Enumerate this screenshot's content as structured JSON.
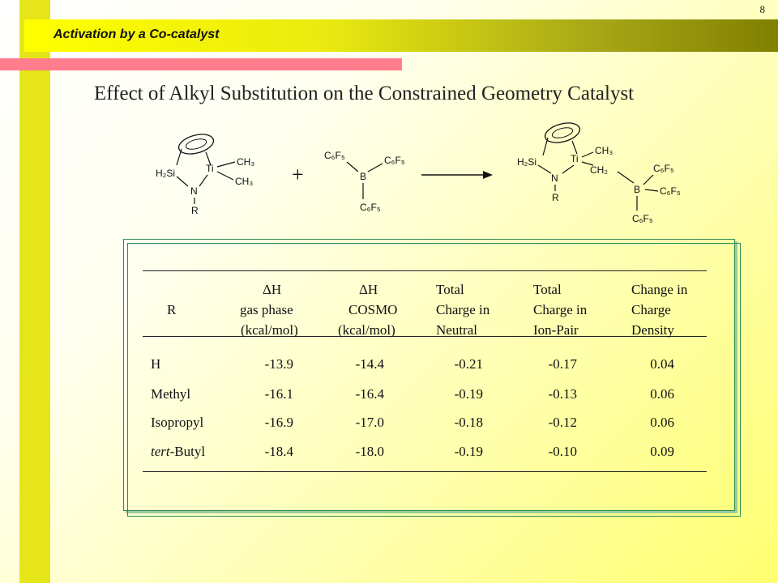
{
  "header": {
    "section_title": "Activation by a Co-catalyst",
    "page_number": "8"
  },
  "title": "Effect of Alkyl Substitution on the Constrained Geometry Catalyst",
  "scheme": {
    "reactant1": {
      "si": "H₂Si",
      "ti": "Ti",
      "ch3_top": "CH₃",
      "ch3_bottom": "CH₃",
      "n": "N",
      "r": "R"
    },
    "plus": "+",
    "reactant2": {
      "c6f5_left": "C₆F₅",
      "c6f5_right": "C₆F₅",
      "b": "B",
      "c6f5_bottom": "C₆F₅"
    },
    "product": {
      "si": "H₂Si",
      "ti": "Ti",
      "ch3": "CH₃",
      "ch2": "CH₂",
      "n": "N",
      "r": "R",
      "b": "B",
      "c6f5_top": "C₆F₅",
      "c6f5_right": "C₆F₅",
      "c6f5_bottom": "C₆F₅"
    }
  },
  "table": {
    "headers": [
      {
        "lines": [
          "",
          "R",
          ""
        ]
      },
      {
        "lines": [
          "ΔH",
          "gas phase",
          "(kcal/mol)"
        ]
      },
      {
        "lines": [
          "ΔH",
          "COSMO",
          "(kcal/mol)"
        ]
      },
      {
        "lines": [
          "Total",
          "Charge in",
          "Neutral"
        ]
      },
      {
        "lines": [
          "Total",
          "Charge in",
          "Ion-Pair"
        ]
      },
      {
        "lines": [
          "Change in",
          "Charge",
          "Density"
        ]
      }
    ],
    "rows": [
      {
        "r_prefix": "",
        "r": "H",
        "dh_gas": "-13.9",
        "dh_cosmo": "-14.4",
        "charge_neutral": "-0.21",
        "charge_ionpair": "-0.17",
        "change_density": "0.04"
      },
      {
        "r_prefix": "",
        "r": "Methyl",
        "dh_gas": "-16.1",
        "dh_cosmo": "-16.4",
        "charge_neutral": "-0.19",
        "charge_ionpair": "-0.13",
        "change_density": "0.06"
      },
      {
        "r_prefix": "",
        "r": "Isopropyl",
        "dh_gas": "-16.9",
        "dh_cosmo": "-17.0",
        "charge_neutral": "-0.18",
        "charge_ionpair": "-0.12",
        "change_density": "0.06"
      },
      {
        "r_prefix": "tert",
        "r": "-Butyl",
        "dh_gas": "-18.4",
        "dh_cosmo": "-18.0",
        "charge_neutral": "-0.19",
        "charge_ionpair": "-0.10",
        "change_density": "0.09"
      }
    ]
  }
}
